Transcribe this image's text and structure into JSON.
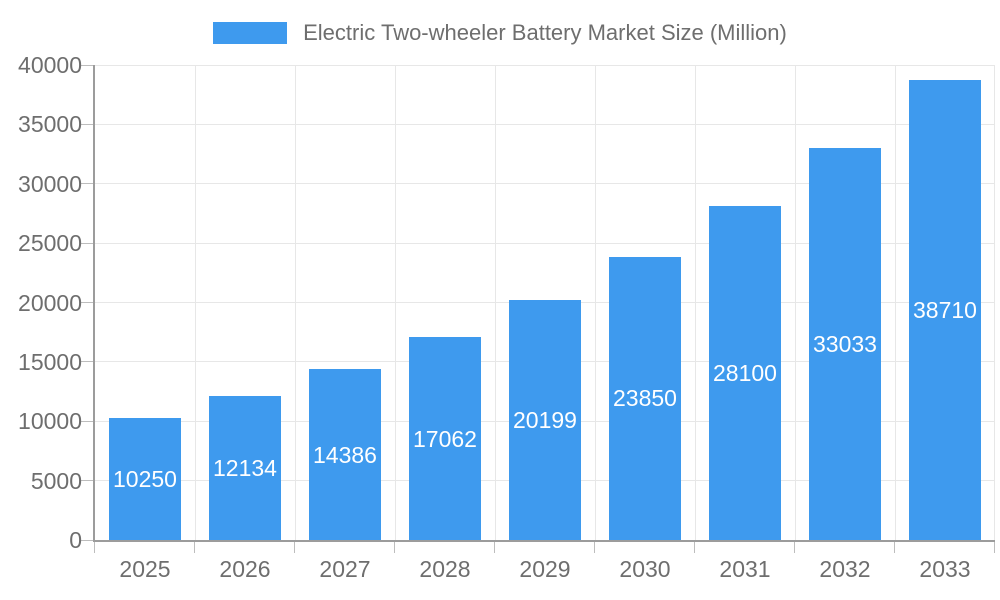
{
  "legend": {
    "label": "Electric Two-wheeler Battery Market Size (Million)"
  },
  "chart_data": {
    "type": "bar",
    "title": "Electric Two-wheeler Battery Market Size (Million)",
    "categories": [
      "2025",
      "2026",
      "2027",
      "2028",
      "2029",
      "2030",
      "2031",
      "2032",
      "2033"
    ],
    "values": [
      10250,
      12134,
      14386,
      17062,
      20199,
      23850,
      28100,
      33033,
      38710
    ],
    "xlabel": "",
    "ylabel": "",
    "ylim": [
      0,
      40000
    ],
    "yticks": [
      0,
      5000,
      10000,
      15000,
      20000,
      25000,
      30000,
      35000,
      40000
    ],
    "grid": true,
    "legend_position": "top-center",
    "colors": {
      "bar": "#3E9AEE",
      "value_label": "#FFFFFF",
      "axis": "#9C9C9C",
      "grid": "#E7E7E7",
      "tick": "#BDBDBD",
      "text": "#6E6E6E"
    }
  }
}
